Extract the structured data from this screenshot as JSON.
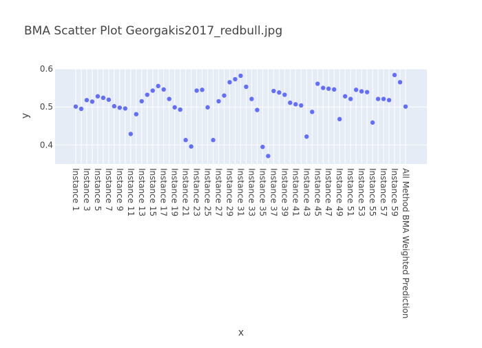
{
  "colors": {
    "plot_bg": "#e5ecf6",
    "grid": "#ffffff",
    "marker": "#636efa",
    "text": "#444444"
  },
  "chart_data": {
    "type": "scatter",
    "title": "BMA Scatter Plot Georgakis2017_redbull.jpg",
    "xlabel": "x",
    "ylabel": "y",
    "ylim": [
      0.35,
      0.6
    ],
    "yticks": [
      "0.4",
      "0.5",
      "0.6"
    ],
    "grid": true,
    "x": [
      "Instance 1",
      "Instance 2",
      "Instance 3",
      "Instance 4",
      "Instance 5",
      "Instance 6",
      "Instance 7",
      "Instance 8",
      "Instance 9",
      "Instance 10",
      "Instance 11",
      "Instance 12",
      "Instance 13",
      "Instance 14",
      "Instance 15",
      "Instance 16",
      "Instance 17",
      "Instance 18",
      "Instance 19",
      "Instance 20",
      "Instance 21",
      "Instance 22",
      "Instance 23",
      "Instance 24",
      "Instance 25",
      "Instance 26",
      "Instance 27",
      "Instance 28",
      "Instance 29",
      "Instance 30",
      "Instance 31",
      "Instance 32",
      "Instance 33",
      "Instance 34",
      "Instance 35",
      "Instance 36",
      "Instance 37",
      "Instance 38",
      "Instance 39",
      "Instance 40",
      "Instance 41",
      "Instance 42",
      "Instance 43",
      "Instance 44",
      "Instance 45",
      "Instance 46",
      "Instance 47",
      "Instance 48",
      "Instance 49",
      "Instance 50",
      "Instance 51",
      "Instance 52",
      "Instance 53",
      "Instance 54",
      "Instance 55",
      "Instance 56",
      "Instance 57",
      "Instance 58",
      "Instance 59",
      "Instance 60",
      "All Method BMA Weighted Prediction"
    ],
    "x_tick_labels": [
      "Instance 1",
      "Instance 3",
      "Instance 5",
      "Instance 7",
      "Instance 9",
      "Instance 11",
      "Instance 13",
      "Instance 15",
      "Instance 17",
      "Instance 19",
      "Instance 21",
      "Instance 23",
      "Instance 25",
      "Instance 27",
      "Instance 29",
      "Instance 31",
      "Instance 33",
      "Instance 35",
      "Instance 37",
      "Instance 39",
      "Instance 41",
      "Instance 43",
      "Instance 45",
      "Instance 47",
      "Instance 49",
      "Instance 51",
      "Instance 53",
      "Instance 55",
      "Instance 57",
      "Instance 59",
      "All Method BMA Weighted Prediction"
    ],
    "y": [
      0.501,
      0.495,
      0.518,
      0.514,
      0.528,
      0.524,
      0.519,
      0.502,
      0.498,
      0.496,
      0.429,
      0.481,
      0.515,
      0.532,
      0.543,
      0.555,
      0.546,
      0.521,
      0.499,
      0.493,
      0.413,
      0.396,
      0.543,
      0.545,
      0.499,
      0.413,
      0.515,
      0.53,
      0.565,
      0.573,
      0.582,
      0.553,
      0.521,
      0.492,
      0.395,
      0.371,
      0.542,
      0.538,
      0.532,
      0.511,
      0.507,
      0.504,
      0.422,
      0.487,
      0.561,
      0.55,
      0.548,
      0.546,
      0.468,
      0.528,
      0.521,
      0.545,
      0.541,
      0.539,
      0.459,
      0.521,
      0.521,
      0.518,
      0.584,
      0.565,
      0.501
    ]
  }
}
